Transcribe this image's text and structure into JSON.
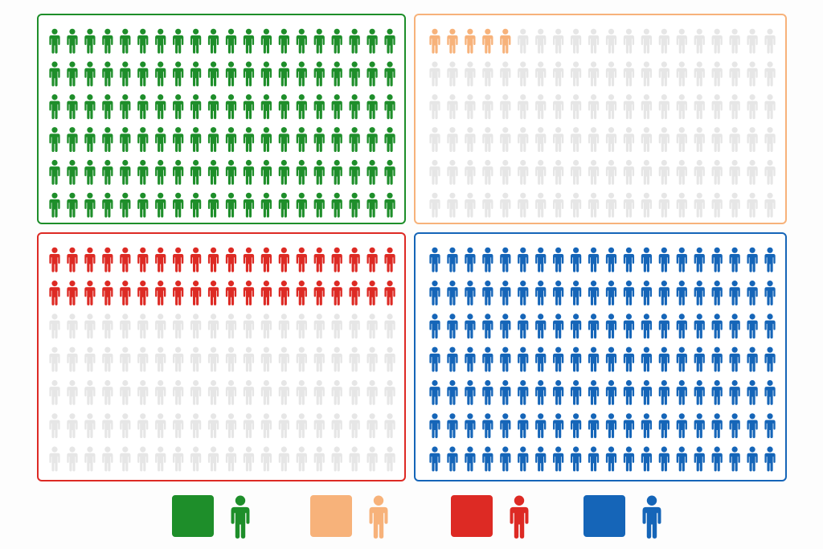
{
  "chart_data": {
    "type": "pictogram",
    "inactive_color": "#e6e6e6",
    "panels": [
      {
        "color": "#1e8e2a",
        "rows": 6,
        "cols": 20,
        "filled": 120,
        "total": 120
      },
      {
        "color": "#f7b27a",
        "rows": 6,
        "cols": 20,
        "filled": 5,
        "total": 120
      },
      {
        "color": "#dd2a24",
        "rows": 7,
        "cols": 20,
        "filled": 40,
        "total": 140
      },
      {
        "color": "#1565b8",
        "rows": 7,
        "cols": 20,
        "filled": 140,
        "total": 140
      }
    ],
    "legend": [
      {
        "color": "#1e8e2a",
        "icon": "person-icon"
      },
      {
        "color": "#f7b27a",
        "icon": "person-icon"
      },
      {
        "color": "#dd2a24",
        "icon": "person-icon"
      },
      {
        "color": "#1565b8",
        "icon": "person-icon"
      }
    ]
  }
}
